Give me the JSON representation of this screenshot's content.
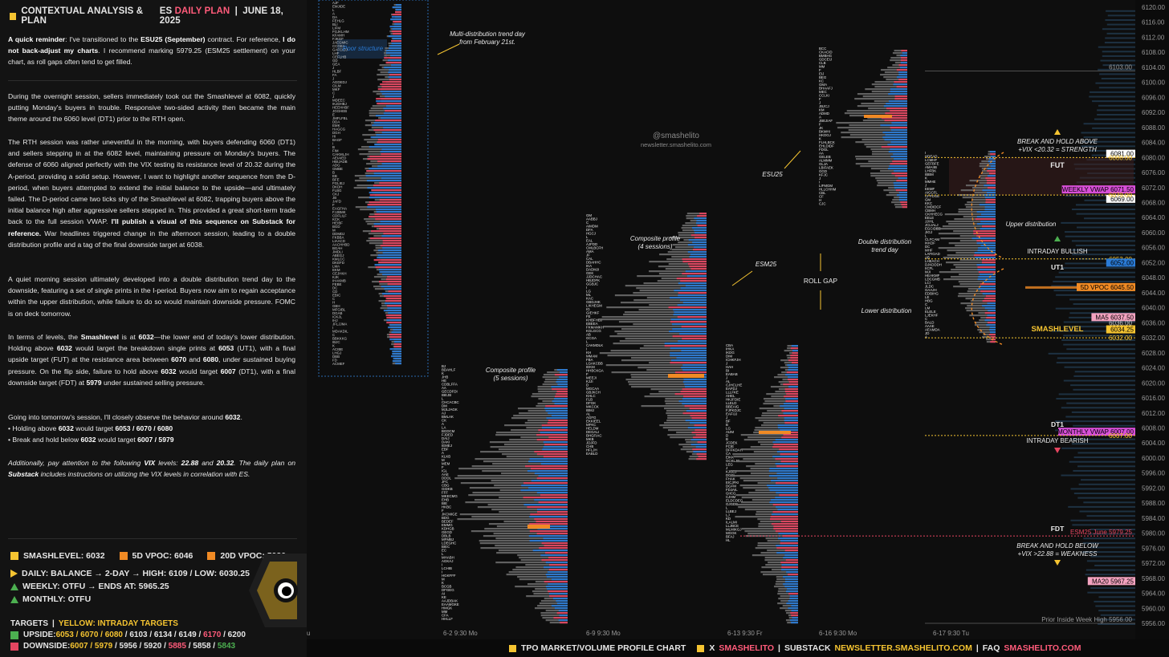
{
  "header": {
    "title": "CONTEXTUAL ANALYSIS & PLAN",
    "symbol": "ES",
    "plan": "DAILY PLAN",
    "sep": "|",
    "date": "JUNE 18, 2025"
  },
  "reminder": {
    "lead": "A quick reminder",
    "t1": ": I've transitioned to the ",
    "contract": "ESU25 (September)",
    "t2": " contract. For reference, ",
    "nobackadjust": "I do not back-adjust my charts",
    "t3": ". I recommend marking 5979.25 (ESM25 settlement) on your chart, as roll gaps often tend to get filled."
  },
  "para1": "During the overnight session, sellers immediately took out the Smashlevel at 6082, quickly putting Monday's buyers in trouble. Responsive two-sided activity then became the main theme around the 6060 level (DT1) prior to the RTH open.",
  "para2": {
    "t1": "The RTH session was rather uneventful in the morning, with buyers defending 6060 (DT1) and sellers stepping in at the 6082 level, maintaining pressure on Monday's buyers. The defense of 6060 aligned perfectly with the VIX testing its resistance level of 20.32 during the A-period, providing a solid setup. However, I want to highlight another sequence from the D-period, when buyers attempted to extend the initial balance to the upside—and ultimately failed. The D-period came two ticks shy of the Smashlevel at 6082, trapping buyers above the initial balance high after aggressive sellers stepped in. This provided a great short-term trade back to the full session VWAP. ",
    "bold": "I'll publish a visual of this sequence on Substack for reference.",
    "t2": " War headlines triggered change in the afternoon session, leading to a double distribution profile and a tag of the final downside target at 6038."
  },
  "para3": "A quiet morning session ultimately developed into a double distribution trend day to the downside, featuring a set of single prints in the I-period. Buyers now aim to regain acceptance within the upper distribution, while failure to do so would maintain downside pressure. FOMC is on deck tomorrow.",
  "para4": {
    "t1": "In terms of levels, the ",
    "b1": "Smashlevel",
    "t2": " is at ",
    "b2": "6032",
    "t3": "—the lower end of today's lower distribution. Holding above ",
    "b3": "6032",
    "t4": " would target the breakdown single prints at ",
    "b4": "6053",
    "t5": " (UT1), with a final upside target (FUT) at the resistance area between ",
    "b5": "6070",
    "t6": " and ",
    "b6": "6080",
    "t7": ", under sustained buying pressure. On the flip side, failure to hold above ",
    "b7": "6032",
    "t8": " would target ",
    "b8": "6007",
    "t9": " (DT1), with a final downside target (FDT) at ",
    "b9": "5979",
    "t10": " under sustained selling pressure."
  },
  "para5": {
    "t1": "Going into tomorrow's session, I'll closely observe the behavior around ",
    "b1": "6032",
    "t2": ".",
    "l1a": "• Holding above ",
    "l1b": "6032",
    "l1c": " would target ",
    "l1d": "6053 / 6070 / 6080",
    "l2a": "• Break and hold below ",
    "l2b": "6032",
    "l2c": " would target ",
    "l2d": "6007 / 5979"
  },
  "para6": {
    "t1": "Additionally, pay attention to the following ",
    "b1": "VIX",
    "t2": " levels: ",
    "b2": "22.88",
    "t3": " and ",
    "b3": "20.32",
    "t4": ". The daily plan on ",
    "b4": "Substack",
    "t5": " includes instructions on utilizing the VIX levels in correlation with ES."
  },
  "stats": {
    "smashlevel": "SMASHLEVEL: 6032",
    "vpoc5": "5D VPOC: 6046",
    "vpoc20": "20D VPOC: 5920",
    "daily": "DAILY: BALANCE → 2-DAY → HIGH: 6109 / LOW: 6030.25",
    "weekly": "WEEKLY: OTFU → ENDS AT: 5965.25",
    "monthly": "MONTHLY: OTFU"
  },
  "targets": {
    "label": "TARGETS",
    "sep": "|",
    "yellow_label": "YELLOW: INTRADAY TARGETS",
    "upside_label": "UPSIDE: ",
    "upside_y": "6053 / 6070 / 6080",
    "upside_w": " / 6103 / 6134 / 6149 / ",
    "upside_r": "6170",
    "upside_w2": " / 6200",
    "downside_label": "DOWNSIDE: ",
    "downside_y": "6007 / 5979",
    "downside_w": " / 5956 / 5920 / ",
    "downside_r": "5885",
    "downside_w2": " / 5858 / ",
    "downside_g": "5843"
  },
  "footer": {
    "chart": "TPO MARKET/VOLUME PROFILE CHART",
    "x": "X",
    "handle": "SMASHELITO",
    "sep": "|",
    "substack": "SUBSTACK",
    "newsletter": "NEWSLETTER.SMASHELITO.COM",
    "faq": "FAQ",
    "site": "SMASHELITO.COM"
  },
  "chart_data": {
    "type": "tpo-profile",
    "y_axis": {
      "min": 5956,
      "max": 6120,
      "step": 4,
      "side": "right"
    },
    "x_axis_labels": [
      "u",
      "6-2  9:30 Mo",
      "6-9  9:30 Mo",
      "6-13  9:30 Fr",
      "6-16  9:30 Mo",
      "6-17  9:30 Tu"
    ],
    "levels": [
      {
        "label": "6103.00",
        "price": 6103,
        "kind": "line"
      },
      {
        "label": "6081.00",
        "price": 6081,
        "kind": "badge-white"
      },
      {
        "label": "6080.00",
        "price": 6080,
        "kind": "yellow-dotted"
      },
      {
        "label": "WEEKLY VWAP",
        "value": "6071.50",
        "price": 6071.5,
        "kind": "badge-magenta"
      },
      {
        "label": "6069.00",
        "price": 6069,
        "kind": "badge-white"
      },
      {
        "label": "6070.00",
        "price": 6070,
        "kind": "yellow-dotted"
      },
      {
        "label": "6053.00",
        "price": 6053,
        "kind": "yellow-dotted"
      },
      {
        "label": "6052.00",
        "price": 6052,
        "kind": "badge-blue"
      },
      {
        "label": "5D VPOC",
        "value": "6045.50",
        "price": 6045.5,
        "kind": "badge-orange"
      },
      {
        "label": "MA5",
        "value": "6037.50",
        "price": 6037.5,
        "kind": "badge-pink"
      },
      {
        "label": "6036.00",
        "price": 6036,
        "kind": "text"
      },
      {
        "label": "6034.25",
        "price": 6034.25,
        "kind": "badge-yellow"
      },
      {
        "label": "6032.00",
        "price": 6032,
        "kind": "yellow-dotted"
      },
      {
        "label": "MONTHLY VWAP",
        "value": "6007.00",
        "price": 6007,
        "kind": "badge-magenta"
      },
      {
        "label": "6007.00",
        "price": 6006,
        "kind": "yellow-dotted"
      },
      {
        "label": "ESM25 June",
        "value": "5979.25",
        "price": 5979.25,
        "kind": "red-dotted"
      },
      {
        "label": "MA20",
        "value": "5967.25",
        "price": 5967.25,
        "kind": "badge-pink"
      },
      {
        "label": "Prior Inside Week High",
        "value": "5956.00",
        "price": 5956,
        "kind": "line"
      }
    ],
    "annotations": [
      "Multi-distribution trend day from February 21st.",
      "Poor structure",
      "@smashelito",
      "newsletter.smashelito.com",
      "ESU25",
      "Composite profile (4 sessions)",
      "Composite profile (5 sessions)",
      "ESM25",
      "ROLL GAP",
      "Double distribution trend day",
      "Lower distribution",
      "Upper distribution",
      "BREAK AND HOLD ABOVE",
      "+VIX <20.32 = STRENGTH",
      "FUT",
      "INTRADAY BULLISH",
      "UT1",
      "SMASHLEVEL",
      "DT1",
      "INTRADAY BEARISH",
      "FDT",
      "BREAK AND HOLD BELOW",
      "+VIX >22.88 = WEAKNESS"
    ],
    "colors": {
      "yellow": "#f5c431",
      "orange": "#f08a24",
      "red": "#e64560",
      "blue": "#2a7bd6",
      "magenta": "#d84fd8",
      "pink": "#f4a3c0"
    }
  }
}
